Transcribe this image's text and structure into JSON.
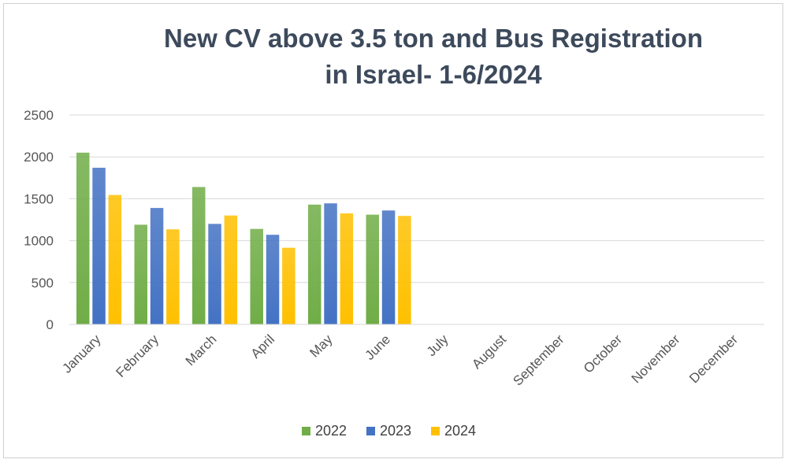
{
  "chart_data": {
    "type": "bar",
    "title_lines": [
      "New CV above 3.5 ton and Bus Registration",
      "in Israel- 1-6/2024"
    ],
    "xlabel": "",
    "ylabel": "",
    "ylim": [
      0,
      2500
    ],
    "yticks": [
      0,
      500,
      1000,
      1500,
      2000,
      2500
    ],
    "grid": true,
    "legend_position": "bottom-center",
    "categories": [
      "January",
      "February",
      "March",
      "April",
      "May",
      "June",
      "July",
      "August",
      "September",
      "October",
      "November",
      "December"
    ],
    "series": [
      {
        "name": "2022",
        "color": "#70ad47",
        "values": [
          2050,
          1190,
          1640,
          1140,
          1430,
          1310,
          null,
          null,
          null,
          null,
          null,
          null
        ]
      },
      {
        "name": "2023",
        "color": "#4472c4",
        "values": [
          1870,
          1390,
          1200,
          1070,
          1445,
          1360,
          null,
          null,
          null,
          null,
          null,
          null
        ]
      },
      {
        "name": "2024",
        "color": "#ffc000",
        "values": [
          1545,
          1135,
          1300,
          915,
          1325,
          1295,
          null,
          null,
          null,
          null,
          null,
          null
        ]
      }
    ]
  }
}
